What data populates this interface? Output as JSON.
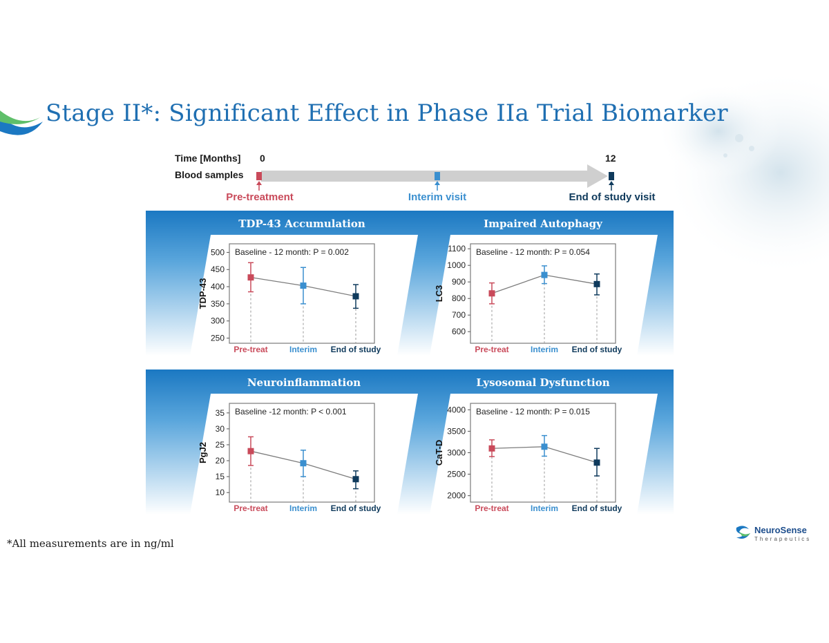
{
  "slide": {
    "title": "Stage II*: Significant Effect in Phase IIa Trial Biomarker",
    "footnote": "*All measurements are in ng/ml"
  },
  "timeline": {
    "time_label": "Time [Months]",
    "samples_label": "Blood samples",
    "start_month": "0",
    "end_month": "12",
    "points": [
      {
        "label": "Pre-treatment",
        "color": "#c94a5a"
      },
      {
        "label": "Interim visit",
        "color": "#3a8fcf"
      },
      {
        "label": "End of study visit",
        "color": "#0f3a5c"
      }
    ]
  },
  "logo": {
    "name": "NeuroSense",
    "subtitle": "Therapeutics",
    "icon": "neurosense-logo-icon"
  },
  "colors": {
    "blue_band": "#1b78c2",
    "pre": "#c94a5a",
    "interim": "#3a8fcf",
    "end": "#0f3a5c"
  },
  "chart_data": [
    {
      "type": "line",
      "panel_title": "TDP-43 Accumulation",
      "title": "Baseline - 12 month: P = 0.002",
      "xlabel": "",
      "ylabel": "TDP-43",
      "categories": [
        "Pre-treat",
        "Interim",
        "End of study"
      ],
      "values": [
        427,
        403,
        372
      ],
      "error_low": [
        385,
        350,
        337
      ],
      "error_high": [
        470,
        456,
        406
      ],
      "ylim": [
        235,
        525
      ],
      "yticks": [
        250,
        300,
        350,
        400,
        450,
        500
      ]
    },
    {
      "type": "line",
      "panel_title": "Impaired Autophagy",
      "title": "Baseline - 12 month: P = 0.054",
      "xlabel": "",
      "ylabel": "LC3",
      "categories": [
        "Pre-treat",
        "Interim",
        "End of study"
      ],
      "values": [
        831,
        942,
        887
      ],
      "error_low": [
        768,
        890,
        822
      ],
      "error_high": [
        894,
        997,
        948
      ],
      "ylim": [
        530,
        1130
      ],
      "yticks": [
        600,
        700,
        800,
        900,
        1000,
        1100
      ]
    },
    {
      "type": "line",
      "panel_title": "Neuroinflammation",
      "title": "Baseline -12 month: P < 0.001",
      "xlabel": "",
      "ylabel": "PgJ2",
      "categories": [
        "Pre-treat",
        "Interim",
        "End of study"
      ],
      "values": [
        23,
        19.2,
        14.2
      ],
      "error_low": [
        18.5,
        15,
        11.2
      ],
      "error_high": [
        27.5,
        23.3,
        16.8
      ],
      "ylim": [
        7,
        38
      ],
      "yticks": [
        10,
        15,
        20,
        25,
        30,
        35
      ]
    },
    {
      "type": "line",
      "panel_title": "Lysosomal Dysfunction",
      "title": "Baseline - 12 month: P = 0.015",
      "xlabel": "",
      "ylabel": "CaT-D",
      "categories": [
        "Pre-treat",
        "Interim",
        "End of study"
      ],
      "values": [
        3100,
        3140,
        2770
      ],
      "error_low": [
        2910,
        2920,
        2460
      ],
      "error_high": [
        3300,
        3400,
        3100
      ],
      "ylim": [
        1850,
        4150
      ],
      "yticks": [
        2000,
        2500,
        3000,
        3500,
        4000
      ]
    }
  ]
}
